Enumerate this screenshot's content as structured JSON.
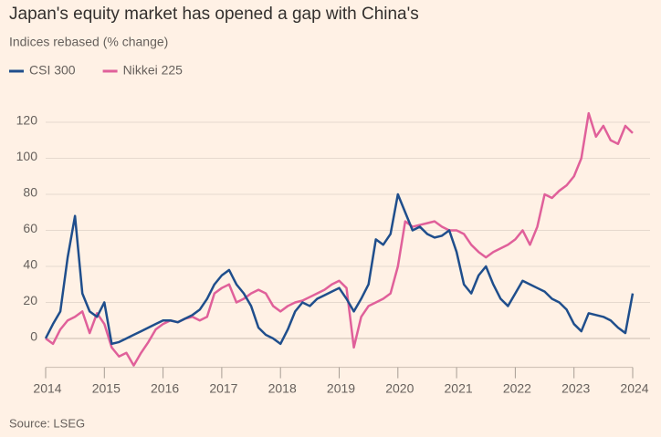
{
  "chart_data": {
    "type": "line",
    "title": "Japan's equity market has opened a gap with China's",
    "subtitle": "Indices rebased (% change)",
    "source": "Source: LSEG",
    "x": [
      2014,
      2014.125,
      2014.25,
      2014.375,
      2014.5,
      2014.625,
      2014.75,
      2014.875,
      2015,
      2015.125,
      2015.25,
      2015.375,
      2015.5,
      2015.625,
      2015.75,
      2015.875,
      2016,
      2016.125,
      2016.25,
      2016.375,
      2016.5,
      2016.625,
      2016.75,
      2016.875,
      2017,
      2017.125,
      2017.25,
      2017.375,
      2017.5,
      2017.625,
      2017.75,
      2017.875,
      2018,
      2018.125,
      2018.25,
      2018.375,
      2018.5,
      2018.625,
      2018.75,
      2018.875,
      2019,
      2019.125,
      2019.25,
      2019.375,
      2019.5,
      2019.625,
      2019.75,
      2019.875,
      2020,
      2020.125,
      2020.25,
      2020.375,
      2020.5,
      2020.625,
      2020.75,
      2020.875,
      2021,
      2021.125,
      2021.25,
      2021.375,
      2021.5,
      2021.625,
      2021.75,
      2021.875,
      2022,
      2022.125,
      2022.25,
      2022.375,
      2022.5,
      2022.625,
      2022.75,
      2022.875,
      2023,
      2023.125,
      2023.25,
      2023.375,
      2023.5,
      2023.625,
      2023.75,
      2023.875,
      2024
    ],
    "series": [
      {
        "name": "CSI 300",
        "color": "#1f4e8c",
        "values": [
          0,
          8,
          15,
          45,
          68,
          25,
          15,
          12,
          20,
          -3,
          -2,
          0,
          2,
          4,
          6,
          8,
          10,
          10,
          9,
          11,
          13,
          16,
          22,
          30,
          35,
          38,
          30,
          25,
          18,
          6,
          2,
          0,
          -3,
          5,
          15,
          20,
          18,
          22,
          24,
          26,
          28,
          22,
          15,
          22,
          30,
          55,
          52,
          58,
          80,
          70,
          60,
          62,
          58,
          56,
          57,
          60,
          48,
          30,
          25,
          35,
          40,
          30,
          22,
          18,
          25,
          32,
          30,
          28,
          26,
          22,
          20,
          16,
          8,
          4,
          14,
          13,
          12,
          10,
          6,
          3,
          25
        ]
      },
      {
        "name": "Nikkei 225",
        "color": "#e0609a",
        "values": [
          0,
          -3,
          5,
          10,
          12,
          15,
          3,
          14,
          8,
          -5,
          -10,
          -8,
          -15,
          -8,
          -2,
          5,
          8,
          10,
          9,
          11,
          12,
          10,
          12,
          25,
          28,
          30,
          20,
          22,
          25,
          27,
          25,
          18,
          15,
          18,
          20,
          21,
          23,
          25,
          27,
          30,
          32,
          28,
          -5,
          12,
          18,
          20,
          22,
          25,
          40,
          65,
          62,
          63,
          64,
          65,
          62,
          60,
          60,
          58,
          52,
          48,
          45,
          48,
          50,
          52,
          55,
          60,
          52,
          62,
          80,
          78,
          82,
          85,
          90,
          100,
          125,
          112,
          118,
          110,
          108,
          118,
          114
        ]
      }
    ],
    "xlim": [
      2014,
      2024
    ],
    "xticks": [
      2014,
      2015,
      2016,
      2017,
      2018,
      2019,
      2020,
      2021,
      2022,
      2023,
      2024
    ],
    "ylim": [
      -15,
      135
    ],
    "yticks": [
      0,
      20,
      40,
      60,
      80,
      100,
      120
    ],
    "grid": true
  }
}
